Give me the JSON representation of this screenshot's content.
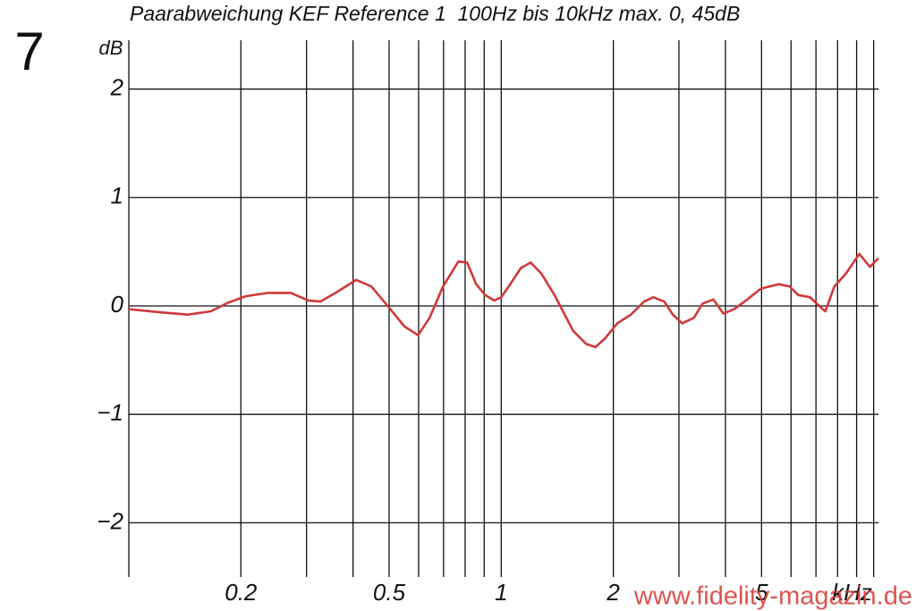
{
  "chart_data": {
    "type": "line",
    "title": "Paarabweichung KEF Reference 1  100Hz bis 10kHz max. 0, 45dB",
    "figure_number": "7",
    "y_unit": "dB",
    "watermark": "www.fidelity-magazin.de",
    "x": [
      0.1,
      0.122,
      0.144,
      0.166,
      0.185,
      0.206,
      0.237,
      0.272,
      0.304,
      0.327,
      0.359,
      0.408,
      0.448,
      0.501,
      0.55,
      0.598,
      0.642,
      0.698,
      0.767,
      0.81,
      0.857,
      0.905,
      0.957,
      1.0,
      1.057,
      1.13,
      1.2,
      1.28,
      1.39,
      1.56,
      1.69,
      1.79,
      1.9,
      2.05,
      2.23,
      2.42,
      2.56,
      2.74,
      2.89,
      3.06,
      3.29,
      3.47,
      3.71,
      3.95,
      4.22,
      4.58,
      4.98,
      5.56,
      5.94,
      6.28,
      6.75,
      7.14,
      7.42,
      7.84,
      8.43,
      9.15,
      9.78,
      10.3
    ],
    "values": [
      -0.03,
      -0.06,
      -0.08,
      -0.05,
      0.03,
      0.09,
      0.12,
      0.12,
      0.05,
      0.04,
      0.12,
      0.24,
      0.18,
      -0.02,
      -0.19,
      -0.27,
      -0.11,
      0.18,
      0.41,
      0.4,
      0.2,
      0.1,
      0.05,
      0.08,
      0.2,
      0.35,
      0.4,
      0.3,
      0.1,
      -0.23,
      -0.35,
      -0.38,
      -0.3,
      -0.16,
      -0.08,
      0.04,
      0.08,
      0.04,
      -0.08,
      -0.16,
      -0.11,
      0.02,
      0.06,
      -0.07,
      -0.03,
      0.06,
      0.16,
      0.2,
      0.18,
      0.1,
      0.08,
      0,
      -0.05,
      0.18,
      0.3,
      0.48,
      0.36,
      0.44
    ],
    "color": "#d0393b",
    "xscale": "log",
    "xlim": [
      0.1,
      10.3
    ],
    "xticks": [
      0.2,
      0.5,
      1,
      2,
      5,
      {
        "value": 10,
        "label": "kHz"
      }
    ],
    "xgrid": [
      0.3,
      0.4,
      0.6,
      0.7,
      0.8,
      0.9,
      3,
      4,
      6,
      7,
      8,
      9
    ],
    "ylim": [
      -2.5,
      2.45
    ],
    "yticks": [
      {
        "value": -2,
        "label": "−2"
      },
      {
        "value": -1,
        "label": "−1"
      },
      0,
      1,
      2
    ],
    "grid": true
  }
}
